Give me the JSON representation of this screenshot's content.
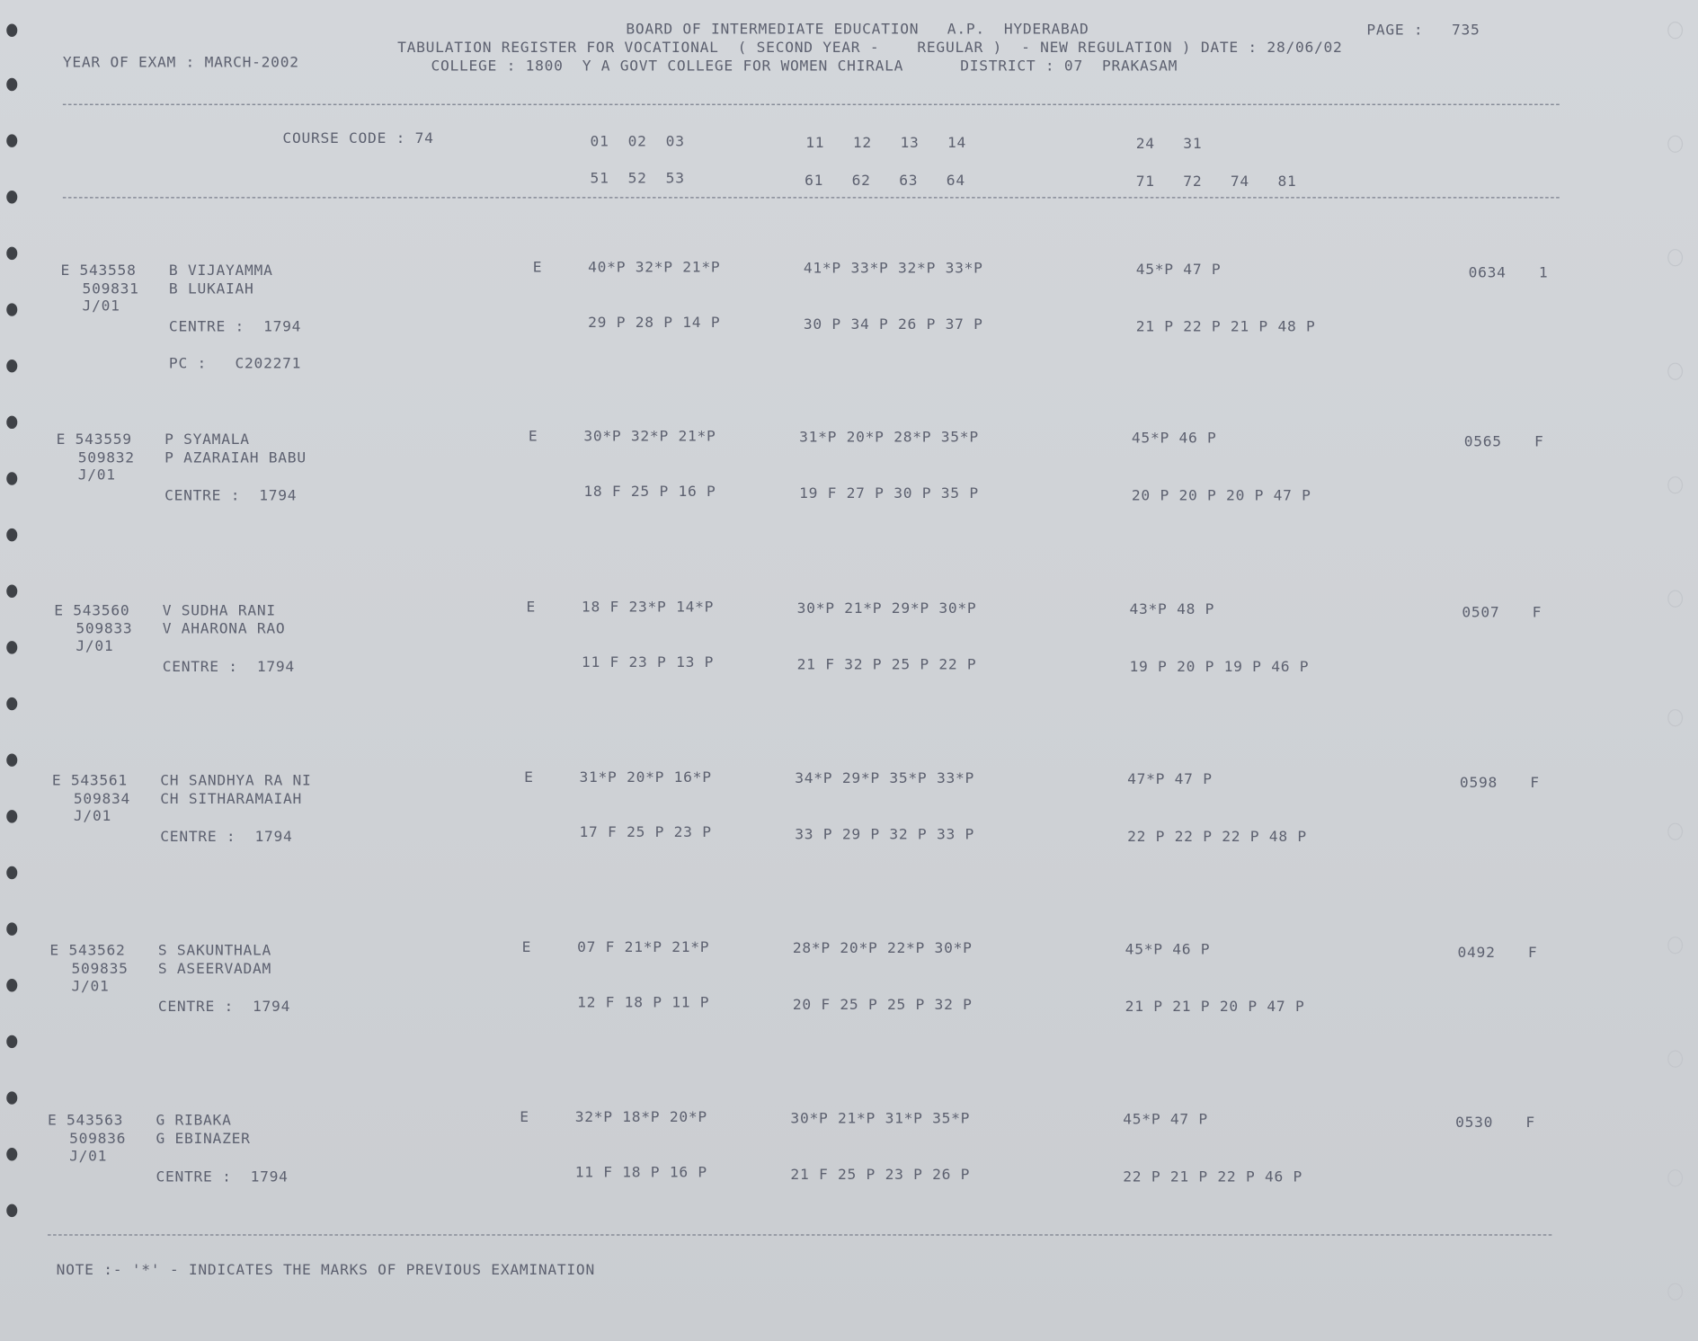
{
  "header": {
    "line1": "BOARD OF INTERMEDIATE EDUCATION   A.P.  HYDERABAD",
    "page": "PAGE :   735",
    "line2": "TABULATION REGISTER FOR VOCATIONAL  ( SECOND YEAR -    REGULAR )  - NEW REGULATION ) DATE : 28/06/02",
    "year": "YEAR OF EXAM : MARCH-2002",
    "line3": "COLLEGE : 1800  Y A GOVT COLLEGE FOR WOMEN CHIRALA      DISTRICT : 07  PRAKASAM"
  },
  "course": {
    "label": "COURSE CODE : 74",
    "codes1": [
      "01  02  03",
      "11   12   13   14",
      "24   31"
    ],
    "codes2": [
      "51  52  53",
      "61   62   63   64",
      "71   72   74   81"
    ]
  },
  "students": [
    {
      "reg": "E 543558",
      "no": "509831",
      "name": "B VIJAYAMMA",
      "father": "B LUKAIAH",
      "group": "J/01",
      "centre": "CENTRE :  1794",
      "pc": "PC :   C202271",
      "e": "E",
      "m1": [
        "40*P 32*P 21*P",
        "41*P 33*P 32*P 33*P",
        "45*P 47 P"
      ],
      "m2": [
        "29 P 28 P 14 P",
        "30 P 34 P 26 P 37 P",
        "21 P 22 P 21 P 48 P"
      ],
      "total": "0634",
      "result": "1"
    },
    {
      "reg": "E 543559",
      "no": "509832",
      "name": "P SYAMALA",
      "father": "P AZARAIAH BABU",
      "group": "J/01",
      "centre": "CENTRE :  1794",
      "e": "E",
      "m1": [
        "30*P 32*P 21*P",
        "31*P 20*P 28*P 35*P",
        "45*P 46 P"
      ],
      "m2": [
        "18 F 25 P 16 P",
        "19 F 27 P 30 P 35 P",
        "20 P 20 P 20 P 47 P"
      ],
      "total": "0565",
      "result": "F"
    },
    {
      "reg": "E 543560",
      "no": "509833",
      "name": "V SUDHA RANI",
      "father": "V AHARONA RAO",
      "group": "J/01",
      "centre": "CENTRE :  1794",
      "e": "E",
      "m1": [
        "18 F 23*P 14*P",
        "30*P 21*P 29*P 30*P",
        "43*P 48 P"
      ],
      "m2": [
        "11 F 23 P 13 P",
        "21 F 32 P 25 P 22 P",
        "19 P 20 P 19 P 46 P"
      ],
      "total": "0507",
      "result": "F"
    },
    {
      "reg": "E 543561",
      "no": "509834",
      "name": "CH SANDHYA RA NI",
      "father": "CH SITHARAMAIAH",
      "group": "J/01",
      "centre": "CENTRE :  1794",
      "e": "E",
      "m1": [
        "31*P 20*P 16*P",
        "34*P 29*P 35*P 33*P",
        "47*P 47 P"
      ],
      "m2": [
        "17 F 25 P 23 P",
        "33 P 29 P 32 P 33 P",
        "22 P 22 P 22 P 48 P"
      ],
      "total": "0598",
      "result": "F"
    },
    {
      "reg": "E 543562",
      "no": "509835",
      "name": "S SAKUNTHALA",
      "father": "S ASEERVADAM",
      "group": "J/01",
      "centre": "CENTRE :  1794",
      "e": "E",
      "m1": [
        "07 F 21*P 21*P",
        "28*P 20*P 22*P 30*P",
        "45*P 46 P"
      ],
      "m2": [
        "12 F 18 P 11 P",
        "20 F 25 P 25 P 32 P",
        "21 P 21 P 20 P 47 P"
      ],
      "total": "0492",
      "result": "F"
    },
    {
      "reg": "E 543563",
      "no": "509836",
      "name": "G RIBAKA",
      "father": "G EBINAZER",
      "group": "J/01",
      "centre": "CENTRE :  1794",
      "e": "E",
      "m1": [
        "32*P 18*P 20*P",
        "30*P 21*P 31*P 35*P",
        "45*P 47 P"
      ],
      "m2": [
        "11 F 18 P 16 P",
        "21 F 25 P 23 P 26 P",
        "22 P 21 P 22 P 46 P"
      ],
      "total": "0530",
      "result": "F"
    }
  ],
  "note": "NOTE :- '*' - INDICATES THE MARKS OF PREVIOUS EXAMINATION"
}
